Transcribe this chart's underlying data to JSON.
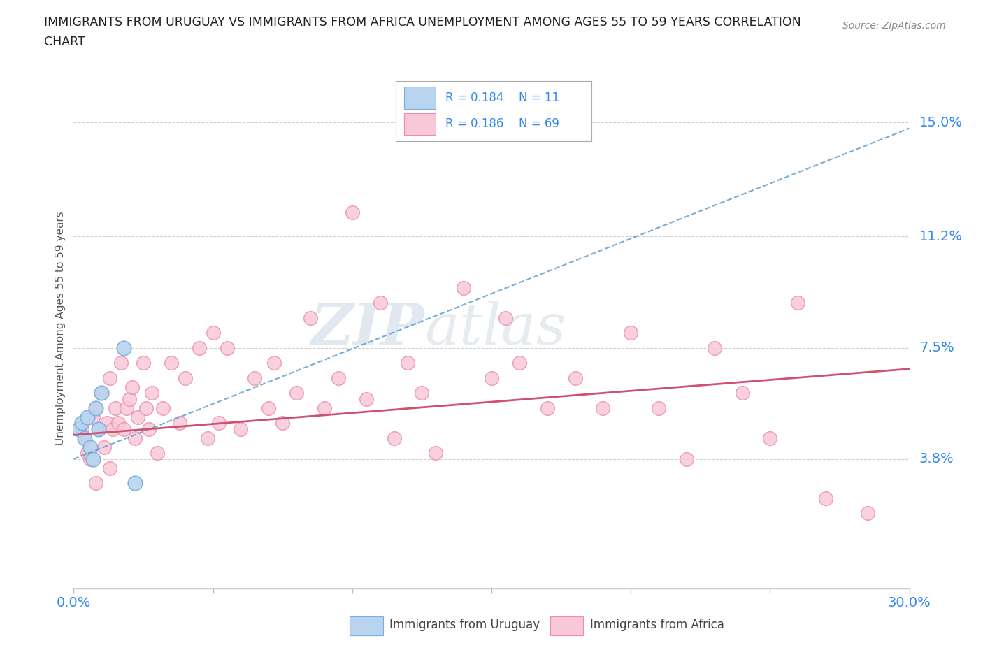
{
  "title_line1": "IMMIGRANTS FROM URUGUAY VS IMMIGRANTS FROM AFRICA UNEMPLOYMENT AMONG AGES 55 TO 59 YEARS CORRELATION",
  "title_line2": "CHART",
  "source": "Source: ZipAtlas.com",
  "ylabel": "Unemployment Among Ages 55 to 59 years",
  "xlim": [
    0.0,
    0.3
  ],
  "ylim": [
    -0.005,
    0.168
  ],
  "xticks": [
    0.0,
    0.05,
    0.1,
    0.15,
    0.2,
    0.25,
    0.3
  ],
  "xticklabels": [
    "0.0%",
    "",
    "",
    "",
    "",
    "",
    "30.0%"
  ],
  "ytick_positions": [
    0.038,
    0.075,
    0.112,
    0.15
  ],
  "ytick_labels": [
    "3.8%",
    "7.5%",
    "11.2%",
    "15.0%"
  ],
  "gridline_color": "#d0d0d0",
  "background_color": "#ffffff",
  "watermark_zip": "ZIP",
  "watermark_atlas": "atlas",
  "legend_R_uruguay": "0.184",
  "legend_N_uruguay": "11",
  "legend_R_africa": "0.186",
  "legend_N_africa": "69",
  "uruguay_fill": "#b8d4ee",
  "uruguay_edge": "#7aade0",
  "africa_fill": "#f9c8d8",
  "africa_edge": "#ee8caa",
  "trend_uruguay_color": "#5599cc",
  "trend_africa_color": "#d05070",
  "title_color": "#222222",
  "axis_label_color": "#555555",
  "tick_color": "#3388ee",
  "source_color": "#888888",
  "uruguay_x": [
    0.002,
    0.003,
    0.004,
    0.005,
    0.006,
    0.007,
    0.008,
    0.009,
    0.01,
    0.018,
    0.022
  ],
  "uruguay_y": [
    0.048,
    0.05,
    0.045,
    0.052,
    0.042,
    0.038,
    0.055,
    0.048,
    0.06,
    0.075,
    0.03
  ],
  "africa_x": [
    0.003,
    0.004,
    0.005,
    0.006,
    0.007,
    0.008,
    0.008,
    0.009,
    0.01,
    0.011,
    0.012,
    0.013,
    0.013,
    0.014,
    0.015,
    0.016,
    0.017,
    0.018,
    0.019,
    0.02,
    0.021,
    0.022,
    0.023,
    0.025,
    0.026,
    0.027,
    0.028,
    0.03,
    0.032,
    0.035,
    0.038,
    0.04,
    0.045,
    0.048,
    0.05,
    0.052,
    0.055,
    0.06,
    0.065,
    0.07,
    0.072,
    0.075,
    0.08,
    0.085,
    0.09,
    0.095,
    0.1,
    0.105,
    0.11,
    0.115,
    0.12,
    0.125,
    0.13,
    0.14,
    0.15,
    0.155,
    0.16,
    0.17,
    0.18,
    0.19,
    0.2,
    0.21,
    0.22,
    0.23,
    0.24,
    0.25,
    0.26,
    0.27,
    0.285
  ],
  "africa_y": [
    0.048,
    0.045,
    0.04,
    0.038,
    0.052,
    0.055,
    0.03,
    0.048,
    0.06,
    0.042,
    0.05,
    0.035,
    0.065,
    0.048,
    0.055,
    0.05,
    0.07,
    0.048,
    0.055,
    0.058,
    0.062,
    0.045,
    0.052,
    0.07,
    0.055,
    0.048,
    0.06,
    0.04,
    0.055,
    0.07,
    0.05,
    0.065,
    0.075,
    0.045,
    0.08,
    0.05,
    0.075,
    0.048,
    0.065,
    0.055,
    0.07,
    0.05,
    0.06,
    0.085,
    0.055,
    0.065,
    0.12,
    0.058,
    0.09,
    0.045,
    0.07,
    0.06,
    0.04,
    0.095,
    0.065,
    0.085,
    0.07,
    0.055,
    0.065,
    0.055,
    0.08,
    0.055,
    0.038,
    0.075,
    0.06,
    0.045,
    0.09,
    0.025,
    0.02
  ],
  "trend_uruguay_start_x": 0.0,
  "trend_uruguay_end_x": 0.3,
  "trend_africa_start_x": 0.0,
  "trend_africa_end_x": 0.3
}
